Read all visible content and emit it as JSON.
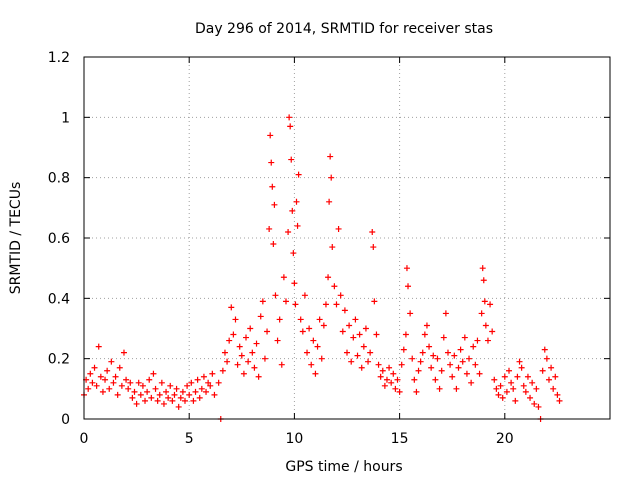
{
  "chart_data": {
    "type": "scatter",
    "title": "Day 296 of 2014, SRMTID for receiver stas",
    "xlabel": "GPS time / hours",
    "ylabel": "SRMTID / TECUs",
    "xlim": [
      0,
      25
    ],
    "ylim": [
      0,
      1.2
    ],
    "xticks": [
      0,
      5,
      10,
      15,
      20
    ],
    "xtick_labels": [
      "0",
      "5",
      "10",
      "15",
      "20"
    ],
    "yticks": [
      0,
      0.2,
      0.4,
      0.6,
      0.8,
      1,
      1.2
    ],
    "ytick_labels": [
      "0",
      "0.2",
      "0.4",
      "0.6",
      "0.8",
      "1",
      "1.2"
    ],
    "grid": true,
    "marker": "+",
    "color": "#ff0000",
    "series": [
      {
        "name": "SRMTID",
        "points": [
          [
            0.0,
            0.08
          ],
          [
            0.1,
            0.13
          ],
          [
            0.2,
            0.1
          ],
          [
            0.3,
            0.15
          ],
          [
            0.4,
            0.12
          ],
          [
            0.5,
            0.17
          ],
          [
            0.6,
            0.11
          ],
          [
            0.7,
            0.24
          ],
          [
            0.8,
            0.14
          ],
          [
            0.9,
            0.09
          ],
          [
            1.0,
            0.13
          ],
          [
            1.1,
            0.16
          ],
          [
            1.2,
            0.1
          ],
          [
            1.3,
            0.19
          ],
          [
            1.4,
            0.12
          ],
          [
            1.5,
            0.14
          ],
          [
            1.6,
            0.08
          ],
          [
            1.7,
            0.17
          ],
          [
            1.8,
            0.11
          ],
          [
            1.9,
            0.22
          ],
          [
            2.0,
            0.13
          ],
          [
            2.1,
            0.1
          ],
          [
            2.2,
            0.12
          ],
          [
            2.3,
            0.07
          ],
          [
            2.4,
            0.09
          ],
          [
            2.5,
            0.05
          ],
          [
            2.6,
            0.12
          ],
          [
            2.7,
            0.08
          ],
          [
            2.8,
            0.11
          ],
          [
            2.9,
            0.06
          ],
          [
            3.0,
            0.09
          ],
          [
            3.1,
            0.13
          ],
          [
            3.2,
            0.07
          ],
          [
            3.3,
            0.15
          ],
          [
            3.4,
            0.1
          ],
          [
            3.5,
            0.06
          ],
          [
            3.6,
            0.08
          ],
          [
            3.7,
            0.12
          ],
          [
            3.8,
            0.05
          ],
          [
            3.9,
            0.09
          ],
          [
            4.0,
            0.07
          ],
          [
            4.1,
            0.11
          ],
          [
            4.2,
            0.06
          ],
          [
            4.3,
            0.08
          ],
          [
            4.4,
            0.1
          ],
          [
            4.5,
            0.04
          ],
          [
            4.6,
            0.07
          ],
          [
            4.7,
            0.09
          ],
          [
            4.8,
            0.06
          ],
          [
            4.9,
            0.11
          ],
          [
            5.0,
            0.08
          ],
          [
            5.1,
            0.12
          ],
          [
            5.2,
            0.06
          ],
          [
            5.3,
            0.09
          ],
          [
            5.4,
            0.13
          ],
          [
            5.5,
            0.07
          ],
          [
            5.6,
            0.1
          ],
          [
            5.7,
            0.14
          ],
          [
            5.8,
            0.09
          ],
          [
            5.9,
            0.12
          ],
          [
            6.0,
            0.11
          ],
          [
            6.1,
            0.15
          ],
          [
            6.2,
            0.08
          ],
          [
            6.4,
            0.12
          ],
          [
            6.5,
            0.0
          ],
          [
            6.6,
            0.16
          ],
          [
            6.7,
            0.22
          ],
          [
            6.8,
            0.19
          ],
          [
            6.9,
            0.26
          ],
          [
            7.0,
            0.37
          ],
          [
            7.1,
            0.28
          ],
          [
            7.2,
            0.33
          ],
          [
            7.3,
            0.18
          ],
          [
            7.4,
            0.24
          ],
          [
            7.5,
            0.21
          ],
          [
            7.6,
            0.15
          ],
          [
            7.7,
            0.27
          ],
          [
            7.8,
            0.19
          ],
          [
            7.9,
            0.3
          ],
          [
            8.0,
            0.22
          ],
          [
            8.1,
            0.17
          ],
          [
            8.2,
            0.25
          ],
          [
            8.3,
            0.14
          ],
          [
            8.4,
            0.34
          ],
          [
            8.5,
            0.39
          ],
          [
            8.6,
            0.2
          ],
          [
            8.7,
            0.29
          ],
          [
            8.8,
            0.63
          ],
          [
            8.85,
            0.94
          ],
          [
            8.9,
            0.85
          ],
          [
            8.95,
            0.77
          ],
          [
            9.0,
            0.58
          ],
          [
            9.05,
            0.71
          ],
          [
            9.1,
            0.41
          ],
          [
            9.2,
            0.26
          ],
          [
            9.3,
            0.33
          ],
          [
            9.4,
            0.18
          ],
          [
            9.5,
            0.47
          ],
          [
            9.6,
            0.39
          ],
          [
            9.7,
            0.62
          ],
          [
            9.75,
            1.0
          ],
          [
            9.8,
            0.97
          ],
          [
            9.85,
            0.86
          ],
          [
            9.9,
            0.69
          ],
          [
            9.95,
            0.55
          ],
          [
            10.0,
            0.45
          ],
          [
            10.05,
            0.38
          ],
          [
            10.1,
            0.72
          ],
          [
            10.15,
            0.64
          ],
          [
            10.2,
            0.81
          ],
          [
            10.3,
            0.33
          ],
          [
            10.4,
            0.29
          ],
          [
            10.5,
            0.41
          ],
          [
            10.6,
            0.22
          ],
          [
            10.7,
            0.3
          ],
          [
            10.8,
            0.18
          ],
          [
            10.9,
            0.26
          ],
          [
            11.0,
            0.15
          ],
          [
            11.1,
            0.24
          ],
          [
            11.2,
            0.33
          ],
          [
            11.3,
            0.2
          ],
          [
            11.4,
            0.31
          ],
          [
            11.5,
            0.38
          ],
          [
            11.6,
            0.47
          ],
          [
            11.65,
            0.72
          ],
          [
            11.7,
            0.87
          ],
          [
            11.75,
            0.8
          ],
          [
            11.8,
            0.57
          ],
          [
            11.9,
            0.44
          ],
          [
            12.0,
            0.38
          ],
          [
            12.1,
            0.63
          ],
          [
            12.2,
            0.41
          ],
          [
            12.3,
            0.29
          ],
          [
            12.4,
            0.36
          ],
          [
            12.5,
            0.22
          ],
          [
            12.6,
            0.31
          ],
          [
            12.7,
            0.19
          ],
          [
            12.8,
            0.27
          ],
          [
            12.9,
            0.33
          ],
          [
            13.0,
            0.21
          ],
          [
            13.1,
            0.28
          ],
          [
            13.2,
            0.17
          ],
          [
            13.3,
            0.24
          ],
          [
            13.4,
            0.3
          ],
          [
            13.5,
            0.19
          ],
          [
            13.6,
            0.22
          ],
          [
            13.7,
            0.62
          ],
          [
            13.75,
            0.57
          ],
          [
            13.8,
            0.39
          ],
          [
            13.9,
            0.28
          ],
          [
            14.0,
            0.18
          ],
          [
            14.1,
            0.14
          ],
          [
            14.2,
            0.16
          ],
          [
            14.3,
            0.11
          ],
          [
            14.4,
            0.13
          ],
          [
            14.5,
            0.17
          ],
          [
            14.6,
            0.12
          ],
          [
            14.7,
            0.15
          ],
          [
            14.8,
            0.1
          ],
          [
            14.9,
            0.13
          ],
          [
            15.0,
            0.09
          ],
          [
            15.1,
            0.18
          ],
          [
            15.2,
            0.23
          ],
          [
            15.3,
            0.28
          ],
          [
            15.35,
            0.5
          ],
          [
            15.4,
            0.44
          ],
          [
            15.5,
            0.35
          ],
          [
            15.6,
            0.2
          ],
          [
            15.7,
            0.13
          ],
          [
            15.8,
            0.09
          ],
          [
            15.9,
            0.16
          ],
          [
            16.0,
            0.19
          ],
          [
            16.1,
            0.22
          ],
          [
            16.2,
            0.28
          ],
          [
            16.3,
            0.31
          ],
          [
            16.4,
            0.24
          ],
          [
            16.5,
            0.17
          ],
          [
            16.6,
            0.21
          ],
          [
            16.7,
            0.13
          ],
          [
            16.8,
            0.2
          ],
          [
            16.9,
            0.1
          ],
          [
            17.0,
            0.16
          ],
          [
            17.1,
            0.27
          ],
          [
            17.2,
            0.35
          ],
          [
            17.3,
            0.22
          ],
          [
            17.4,
            0.18
          ],
          [
            17.5,
            0.14
          ],
          [
            17.6,
            0.21
          ],
          [
            17.7,
            0.1
          ],
          [
            17.8,
            0.17
          ],
          [
            17.9,
            0.23
          ],
          [
            18.0,
            0.19
          ],
          [
            18.1,
            0.27
          ],
          [
            18.2,
            0.15
          ],
          [
            18.3,
            0.2
          ],
          [
            18.4,
            0.12
          ],
          [
            18.5,
            0.24
          ],
          [
            18.6,
            0.18
          ],
          [
            18.7,
            0.26
          ],
          [
            18.8,
            0.15
          ],
          [
            18.9,
            0.35
          ],
          [
            18.95,
            0.5
          ],
          [
            19.0,
            0.46
          ],
          [
            19.05,
            0.39
          ],
          [
            19.1,
            0.31
          ],
          [
            19.2,
            0.26
          ],
          [
            19.3,
            0.38
          ],
          [
            19.4,
            0.29
          ],
          [
            19.5,
            0.13
          ],
          [
            19.6,
            0.1
          ],
          [
            19.7,
            0.08
          ],
          [
            19.8,
            0.11
          ],
          [
            19.9,
            0.07
          ],
          [
            20.0,
            0.14
          ],
          [
            20.1,
            0.09
          ],
          [
            20.2,
            0.16
          ],
          [
            20.3,
            0.12
          ],
          [
            20.4,
            0.1
          ],
          [
            20.5,
            0.06
          ],
          [
            20.6,
            0.14
          ],
          [
            20.7,
            0.19
          ],
          [
            20.8,
            0.17
          ],
          [
            20.9,
            0.11
          ],
          [
            21.0,
            0.09
          ],
          [
            21.1,
            0.14
          ],
          [
            21.2,
            0.07
          ],
          [
            21.3,
            0.12
          ],
          [
            21.4,
            0.05
          ],
          [
            21.5,
            0.1
          ],
          [
            21.6,
            0.04
          ],
          [
            21.7,
            0.0
          ],
          [
            21.8,
            0.16
          ],
          [
            21.9,
            0.23
          ],
          [
            22.0,
            0.2
          ],
          [
            22.1,
            0.13
          ],
          [
            22.2,
            0.17
          ],
          [
            22.3,
            0.1
          ],
          [
            22.4,
            0.14
          ],
          [
            22.5,
            0.08
          ],
          [
            22.6,
            0.06
          ]
        ]
      }
    ]
  }
}
